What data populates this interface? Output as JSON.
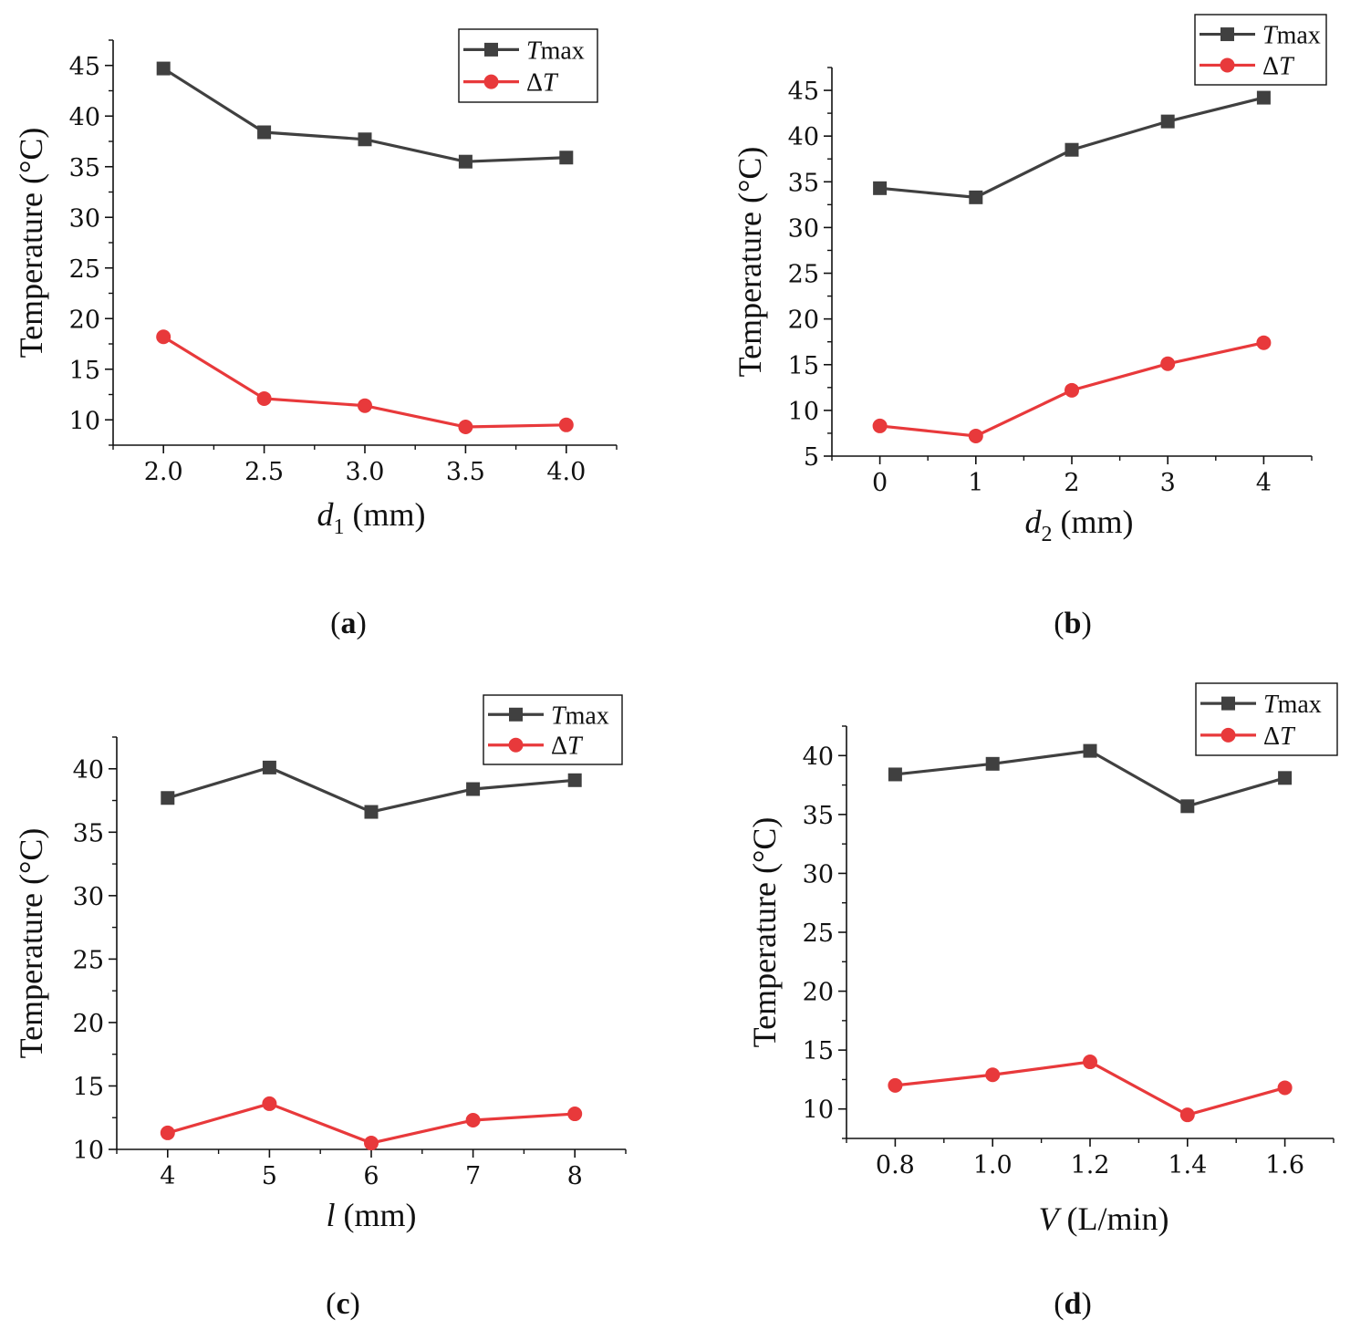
{
  "colors": {
    "tmax": "#404040",
    "deltaT": "#e8393b",
    "axis": "#111111"
  },
  "chart_data": [
    {
      "type": "line",
      "caption_letter": "a",
      "x_axis": {
        "symbol": "d",
        "subscript": "1",
        "unit": " (mm)"
      },
      "ylabel": "Temperature (°C)",
      "x_ticks": [
        2.0,
        2.5,
        3.0,
        3.5,
        4.0
      ],
      "x_tick_labels": [
        "2.0",
        "2.5",
        "3.0",
        "3.5",
        "4.0"
      ],
      "y_ticks": [
        10,
        15,
        20,
        25,
        30,
        35,
        40,
        45
      ],
      "xlim": [
        1.75,
        4.25
      ],
      "ylim": [
        7.5,
        47.5
      ],
      "x": [
        2.0,
        2.5,
        3.0,
        3.5,
        4.0
      ],
      "series": [
        {
          "key": "tmax",
          "marker": "square",
          "legend_main": "T",
          "legend_suffix": "max",
          "values": [
            44.7,
            38.4,
            37.7,
            35.5,
            35.9
          ]
        },
        {
          "key": "deltaT",
          "marker": "circle",
          "legend_main": "Δ",
          "legend_suffix": "T",
          "values": [
            18.2,
            12.1,
            11.4,
            9.3,
            9.5
          ]
        }
      ]
    },
    {
      "type": "line",
      "caption_letter": "b",
      "x_axis": {
        "symbol": "d",
        "subscript": "2",
        "unit": " (mm)"
      },
      "ylabel": "Temperature (°C)",
      "x_ticks": [
        0,
        1,
        2,
        3,
        4
      ],
      "x_tick_labels": [
        "0",
        "1",
        "2",
        "3",
        "4"
      ],
      "y_ticks": [
        5,
        10,
        15,
        20,
        25,
        30,
        35,
        40,
        45
      ],
      "xlim": [
        -0.5,
        4.5
      ],
      "ylim": [
        5,
        47.5
      ],
      "x": [
        0,
        1,
        2,
        3,
        4
      ],
      "series": [
        {
          "key": "tmax",
          "marker": "square",
          "legend_main": "T",
          "legend_suffix": "max",
          "values": [
            34.3,
            33.3,
            38.5,
            41.6,
            44.2
          ]
        },
        {
          "key": "deltaT",
          "marker": "circle",
          "legend_main": "Δ",
          "legend_suffix": "T",
          "values": [
            8.3,
            7.2,
            12.2,
            15.1,
            17.4
          ]
        }
      ]
    },
    {
      "type": "line",
      "caption_letter": "c",
      "x_axis": {
        "symbol": "l",
        "subscript": "",
        "unit": " (mm)"
      },
      "ylabel": "Temperature (°C)",
      "x_ticks": [
        4,
        5,
        6,
        7,
        8
      ],
      "x_tick_labels": [
        "4",
        "5",
        "6",
        "7",
        "8"
      ],
      "y_ticks": [
        10,
        15,
        20,
        25,
        30,
        35,
        40
      ],
      "xlim": [
        3.5,
        8.5
      ],
      "ylim": [
        10,
        42.5
      ],
      "x": [
        4,
        5,
        6,
        7,
        8
      ],
      "series": [
        {
          "key": "tmax",
          "marker": "square",
          "legend_main": "T",
          "legend_suffix": "max",
          "values": [
            37.7,
            40.1,
            36.6,
            38.4,
            39.1
          ]
        },
        {
          "key": "deltaT",
          "marker": "circle",
          "legend_main": "Δ",
          "legend_suffix": "T",
          "values": [
            11.3,
            13.6,
            10.5,
            12.3,
            12.8
          ]
        }
      ]
    },
    {
      "type": "line",
      "caption_letter": "d",
      "x_axis": {
        "symbol": "V",
        "subscript": "",
        "unit": " (L/min)"
      },
      "ylabel": "Temperature (°C)",
      "x_ticks": [
        0.8,
        1.0,
        1.2,
        1.4,
        1.6
      ],
      "x_tick_labels": [
        "0.8",
        "1.0",
        "1.2",
        "1.4",
        "1.6"
      ],
      "y_ticks": [
        10,
        15,
        20,
        25,
        30,
        35,
        40
      ],
      "xlim": [
        0.7,
        1.7
      ],
      "ylim": [
        7.5,
        42.5
      ],
      "x": [
        0.8,
        1.0,
        1.2,
        1.4,
        1.6
      ],
      "series": [
        {
          "key": "tmax",
          "marker": "square",
          "legend_main": "T",
          "legend_suffix": "max",
          "values": [
            38.4,
            39.3,
            40.4,
            35.7,
            38.1
          ]
        },
        {
          "key": "deltaT",
          "marker": "circle",
          "legend_main": "Δ",
          "legend_suffix": "T",
          "values": [
            12.0,
            12.9,
            14.0,
            9.5,
            11.8
          ]
        }
      ]
    }
  ]
}
